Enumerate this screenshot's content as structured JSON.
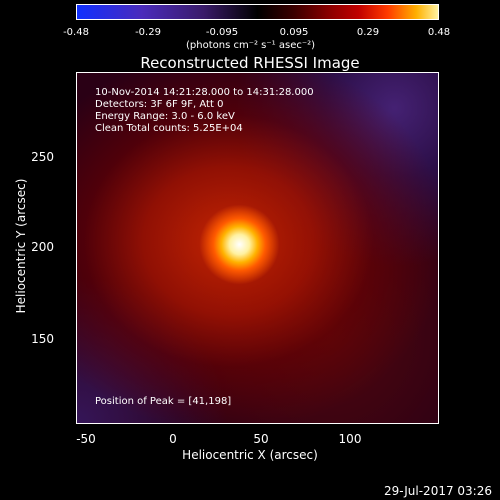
{
  "colorbar": {
    "ticks": [
      "-0.48",
      "-0.29",
      "-0.095",
      "0.095",
      "0.29",
      "0.48"
    ],
    "units": "(photons cm⁻² s⁻¹ asec⁻²)"
  },
  "image": {
    "title": "Reconstructed RHESSI Image",
    "info": [
      "10-Nov-2014 14:21:28.000 to 14:31:28.000",
      "Detectors: 3F 6F 9F, Att 0",
      "Energy Range: 3.0 - 6.0 keV",
      "Clean    Total counts: 5.25E+04"
    ],
    "peak": "Position of Peak = [41,198]",
    "xlabel": "Heliocentric X (arcsec)",
    "ylabel": "Heliocentric Y (arcsec)",
    "xticks": [
      "-50",
      "0",
      "50",
      "100"
    ],
    "yticks": [
      "250",
      "200",
      "150"
    ],
    "colors": {
      "background": "#000000",
      "hot_core": "#ffffff",
      "hot_mid": "#ffb300",
      "red": "#c00000",
      "purple": "#4a2bbb"
    }
  },
  "footer": {
    "timestamp": "29-Jul-2017 03:26"
  }
}
